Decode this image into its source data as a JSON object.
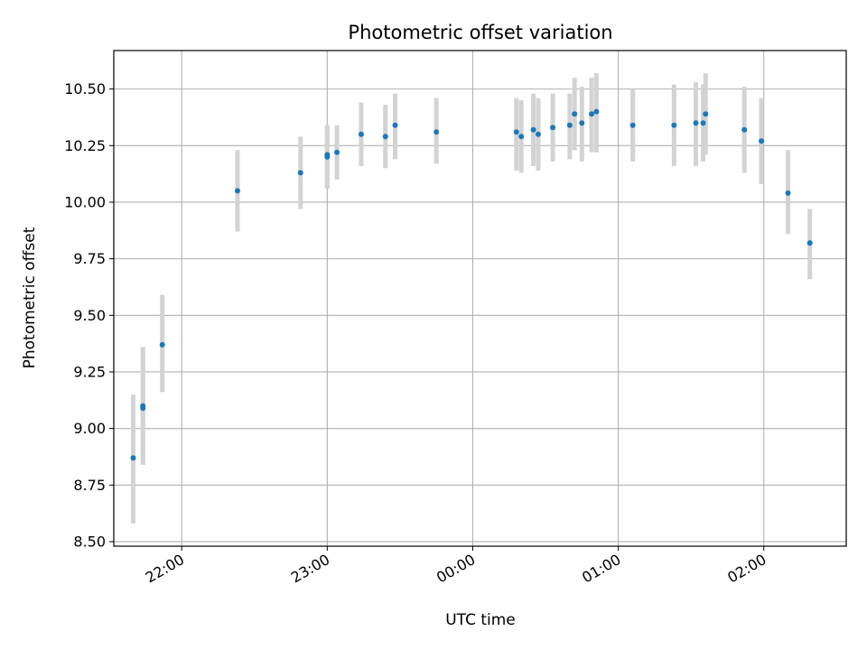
{
  "chart_data": {
    "type": "scatter",
    "title": "Photometric offset variation",
    "xlabel": "UTC time",
    "ylabel": "Photometric offset",
    "x_unit": "UTC hours (times after midnight expressed as 24+h)",
    "xlim": [
      "21:32",
      "02:34"
    ],
    "ylim": [
      8.48,
      10.67
    ],
    "grid": true,
    "colors": {
      "point": "#1f77b4",
      "errorbar": "#d3d3d3",
      "grid": "#b0b0b0"
    },
    "x_ticks": [
      "22:00",
      "23:00",
      "00:00",
      "01:00",
      "02:00"
    ],
    "y_ticks": [
      "8.50",
      "8.75",
      "9.00",
      "9.25",
      "9.50",
      "9.75",
      "10.00",
      "10.25",
      "10.50"
    ],
    "series": [
      {
        "points": [
          {
            "x": "21:40",
            "y": 8.87,
            "err_low": 8.58,
            "err_high": 9.15
          },
          {
            "x": "21:44",
            "y": 9.09,
            "err_low": 8.84,
            "err_high": 9.36
          },
          {
            "x": "21:44",
            "y": 9.1,
            "err_low": 8.84,
            "err_high": 9.36
          },
          {
            "x": "21:52",
            "y": 9.37,
            "err_low": 9.16,
            "err_high": 9.59
          },
          {
            "x": "22:23",
            "y": 10.05,
            "err_low": 9.87,
            "err_high": 10.23
          },
          {
            "x": "22:49",
            "y": 10.13,
            "err_low": 9.97,
            "err_high": 10.29
          },
          {
            "x": "23:00",
            "y": 10.21,
            "err_low": 10.06,
            "err_high": 10.34
          },
          {
            "x": "23:00",
            "y": 10.2,
            "err_low": 10.06,
            "err_high": 10.34
          },
          {
            "x": "23:04",
            "y": 10.22,
            "err_low": 10.1,
            "err_high": 10.34
          },
          {
            "x": "23:14",
            "y": 10.3,
            "err_low": 10.16,
            "err_high": 10.44
          },
          {
            "x": "23:24",
            "y": 10.29,
            "err_low": 10.15,
            "err_high": 10.43
          },
          {
            "x": "23:28",
            "y": 10.34,
            "err_low": 10.19,
            "err_high": 10.48
          },
          {
            "x": "23:45",
            "y": 10.31,
            "err_low": 10.17,
            "err_high": 10.46
          },
          {
            "x": "00:18",
            "y": 10.31,
            "err_low": 10.14,
            "err_high": 10.46
          },
          {
            "x": "00:20",
            "y": 10.29,
            "err_low": 10.13,
            "err_high": 10.45
          },
          {
            "x": "00:25",
            "y": 10.32,
            "err_low": 10.16,
            "err_high": 10.48
          },
          {
            "x": "00:27",
            "y": 10.3,
            "err_low": 10.14,
            "err_high": 10.46
          },
          {
            "x": "00:33",
            "y": 10.33,
            "err_low": 10.18,
            "err_high": 10.48
          },
          {
            "x": "00:40",
            "y": 10.34,
            "err_low": 10.19,
            "err_high": 10.48
          },
          {
            "x": "00:42",
            "y": 10.39,
            "err_low": 10.23,
            "err_high": 10.55
          },
          {
            "x": "00:45",
            "y": 10.35,
            "err_low": 10.18,
            "err_high": 10.51
          },
          {
            "x": "00:49",
            "y": 10.39,
            "err_low": 10.22,
            "err_high": 10.55
          },
          {
            "x": "00:51",
            "y": 10.4,
            "err_low": 10.22,
            "err_high": 10.57
          },
          {
            "x": "01:06",
            "y": 10.34,
            "err_low": 10.18,
            "err_high": 10.5
          },
          {
            "x": "01:23",
            "y": 10.34,
            "err_low": 10.16,
            "err_high": 10.52
          },
          {
            "x": "01:32",
            "y": 10.35,
            "err_low": 10.16,
            "err_high": 10.53
          },
          {
            "x": "01:35",
            "y": 10.35,
            "err_low": 10.18,
            "err_high": 10.52
          },
          {
            "x": "01:36",
            "y": 10.39,
            "err_low": 10.21,
            "err_high": 10.57
          },
          {
            "x": "01:52",
            "y": 10.32,
            "err_low": 10.13,
            "err_high": 10.51
          },
          {
            "x": "01:59",
            "y": 10.27,
            "err_low": 10.08,
            "err_high": 10.46
          },
          {
            "x": "02:10",
            "y": 10.04,
            "err_low": 9.86,
            "err_high": 10.23
          },
          {
            "x": "02:19",
            "y": 9.82,
            "err_low": 9.66,
            "err_high": 9.97
          }
        ]
      }
    ]
  }
}
